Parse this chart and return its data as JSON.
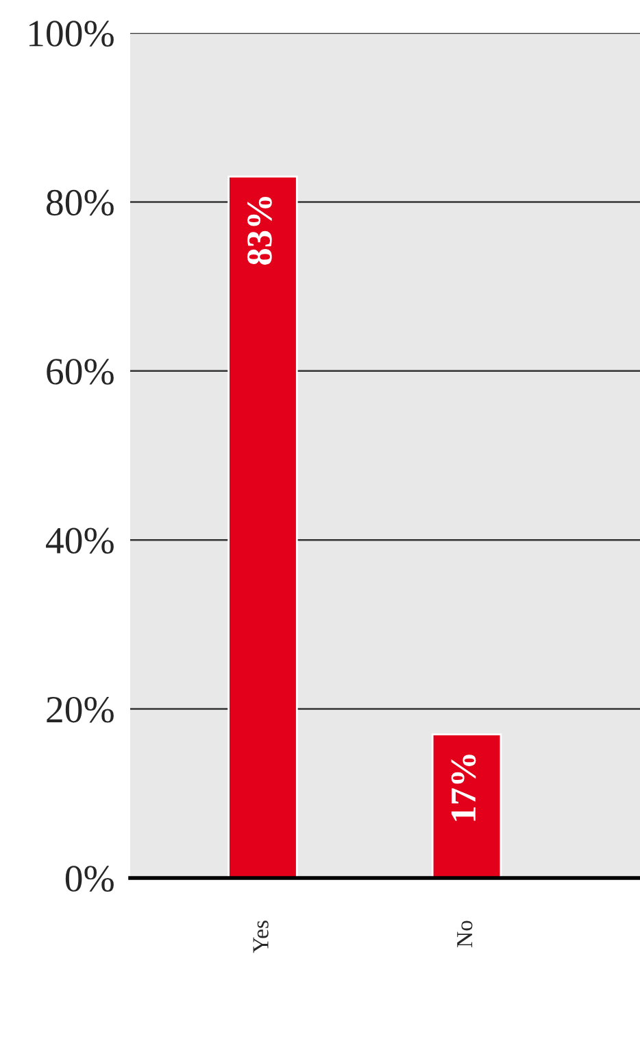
{
  "chart_data": {
    "type": "bar",
    "categories": [
      "Yes",
      "No"
    ],
    "values": [
      83,
      17
    ],
    "color": "#e2001a",
    "value_labels": [
      "83%",
      "17%"
    ],
    "ylim": [
      0,
      100
    ],
    "yticks": [
      {
        "value": 0,
        "label": "0%"
      },
      {
        "value": 20,
        "label": "20%"
      },
      {
        "value": 40,
        "label": "40%"
      },
      {
        "value": 60,
        "label": "60%"
      },
      {
        "value": 80,
        "label": "80%"
      },
      {
        "value": 100,
        "label": "100%"
      }
    ],
    "grid": "y"
  }
}
